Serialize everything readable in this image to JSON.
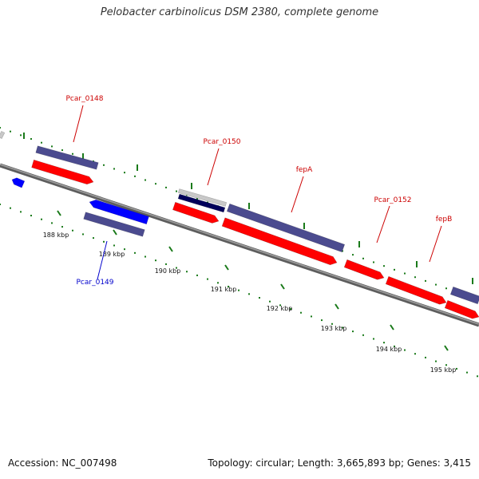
{
  "title": "Pelobacter carbinolicus DSM 2380, complete genome",
  "footer": {
    "accession": "Accession: NC_007498",
    "summary": "Topology: circular; Length: 3,665,893 bp; Genes: 3,415"
  },
  "colors": {
    "forward_gene": "#ff0000",
    "reverse_gene": "#0000ff",
    "feature_bar": "#4b4b8f",
    "feature_dark": "#00005a",
    "feature_light": "#c8c8c8",
    "backbone": "#7a7a7a",
    "tick": "#1a7a1a",
    "forward_label": "#cc0000",
    "reverse_label": "#0000cc"
  },
  "ticks": [
    "188 kbp",
    "189 kbp",
    "190 kbp",
    "191 kbp",
    "192 kbp",
    "193 kbp",
    "194 kbp",
    "195 kbp"
  ],
  "gene_labels": [
    {
      "text": "Pcar_0148",
      "strand": "forward"
    },
    {
      "text": "Pcar_0149",
      "strand": "reverse"
    },
    {
      "text": "Pcar_0150",
      "strand": "forward"
    },
    {
      "text": "fepA",
      "strand": "forward"
    },
    {
      "text": "Pcar_0152",
      "strand": "forward"
    },
    {
      "text": "fepB",
      "strand": "forward"
    }
  ]
}
